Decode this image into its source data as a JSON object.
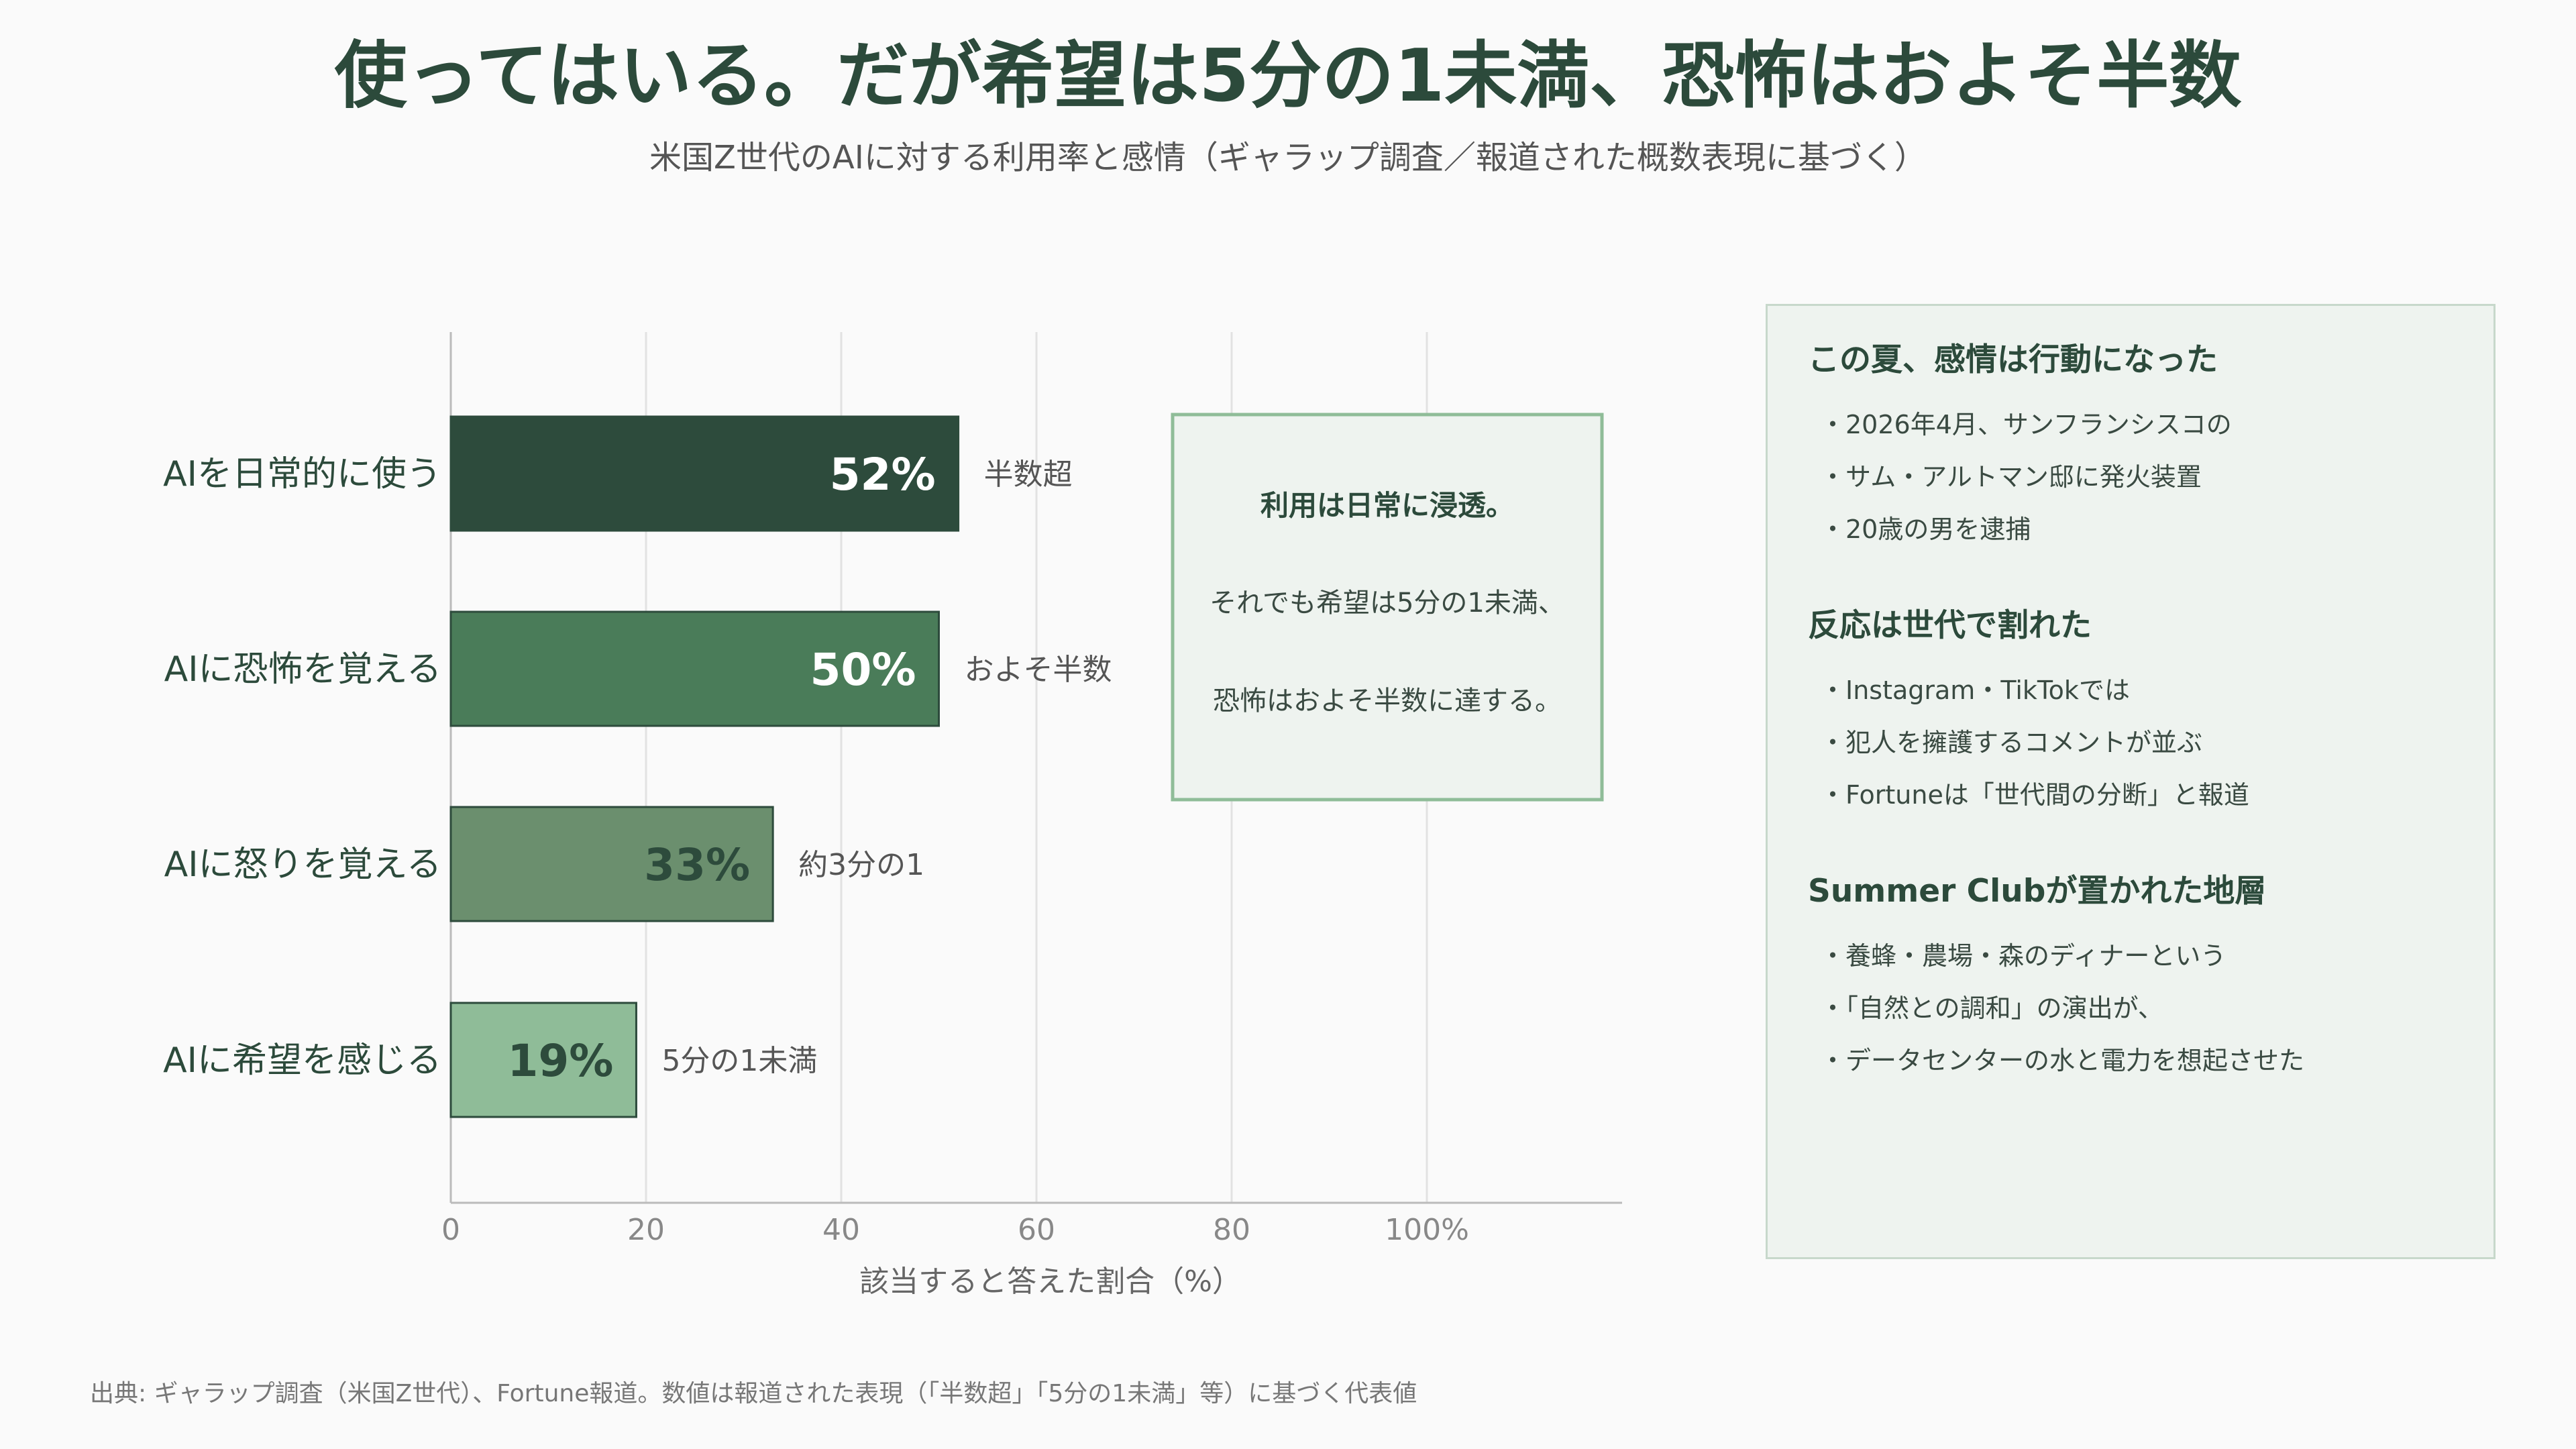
{
  "title": "使ってはいる。だが希望は5分の1未満、恐怖はおよそ半数",
  "subtitle": "米国Z世代のAIに対する利用率と感情（ギャラップ調査／報道された概数表現に基づく）",
  "chart_data": {
    "type": "bar",
    "orientation": "horizontal",
    "categories": [
      "AIを日常的に使う",
      "AIに恐怖を覚える",
      "AIに怒りを覚える",
      "AIに希望を感じる"
    ],
    "values": [
      52,
      50,
      33,
      19
    ],
    "value_labels": [
      "52%",
      "50%",
      "33%",
      "19%"
    ],
    "annotations": [
      "半数超",
      "およそ半数",
      "約3分の1",
      "5分の1未満"
    ],
    "bar_colors": [
      "#2d4b3c",
      "#4a7c59",
      "#6b8f6e",
      "#8fbc98"
    ],
    "value_label_colors": [
      "#ffffff",
      "#ffffff",
      "#2d4b3c",
      "#2d4b3c"
    ],
    "xlabel": "該当すると答えた割合（%）",
    "ylabel": "",
    "xlim": [
      0,
      120
    ],
    "ticks": [
      0,
      20,
      40,
      60,
      80,
      100
    ],
    "tick_labels": [
      "0",
      "20",
      "40",
      "60",
      "80",
      "100%"
    ],
    "grid": true
  },
  "callout": {
    "lines": [
      "利用は日常に浸透。",
      "それでも希望は5分の1未満、",
      "恐怖はおよそ半数に達する。"
    ]
  },
  "sidebar": {
    "sections": [
      {
        "heading": "この夏、感情は行動になった",
        "items": [
          "・2026年4月、サンフランシスコの",
          "・サム・アルトマン邸に発火装置",
          "・20歳の男を逮捕"
        ]
      },
      {
        "heading": "反応は世代で割れた",
        "items": [
          "・Instagram・TikTokでは",
          "・犯人を擁護するコメントが並ぶ",
          "・Fortuneは「世代間の分断」と報道"
        ]
      },
      {
        "heading": "Summer Clubが置かれた地層",
        "items": [
          "・養蜂・農場・森のディナーという",
          "・「自然との調和」の演出が、",
          "・データセンターの水と電力を想起させた"
        ]
      }
    ]
  },
  "source": "出典: ギャラップ調査（米国Z世代）、Fortune報道。数値は報道された表現（「半数超」「5分の1未満」等）に基づく代表値",
  "colors": {
    "primary": "#2c4a3b",
    "grid": "#e2e2e2",
    "axis": "#bbbbbb",
    "callout_bg": "#eef3ef",
    "callout_border": "#8fbc98"
  }
}
